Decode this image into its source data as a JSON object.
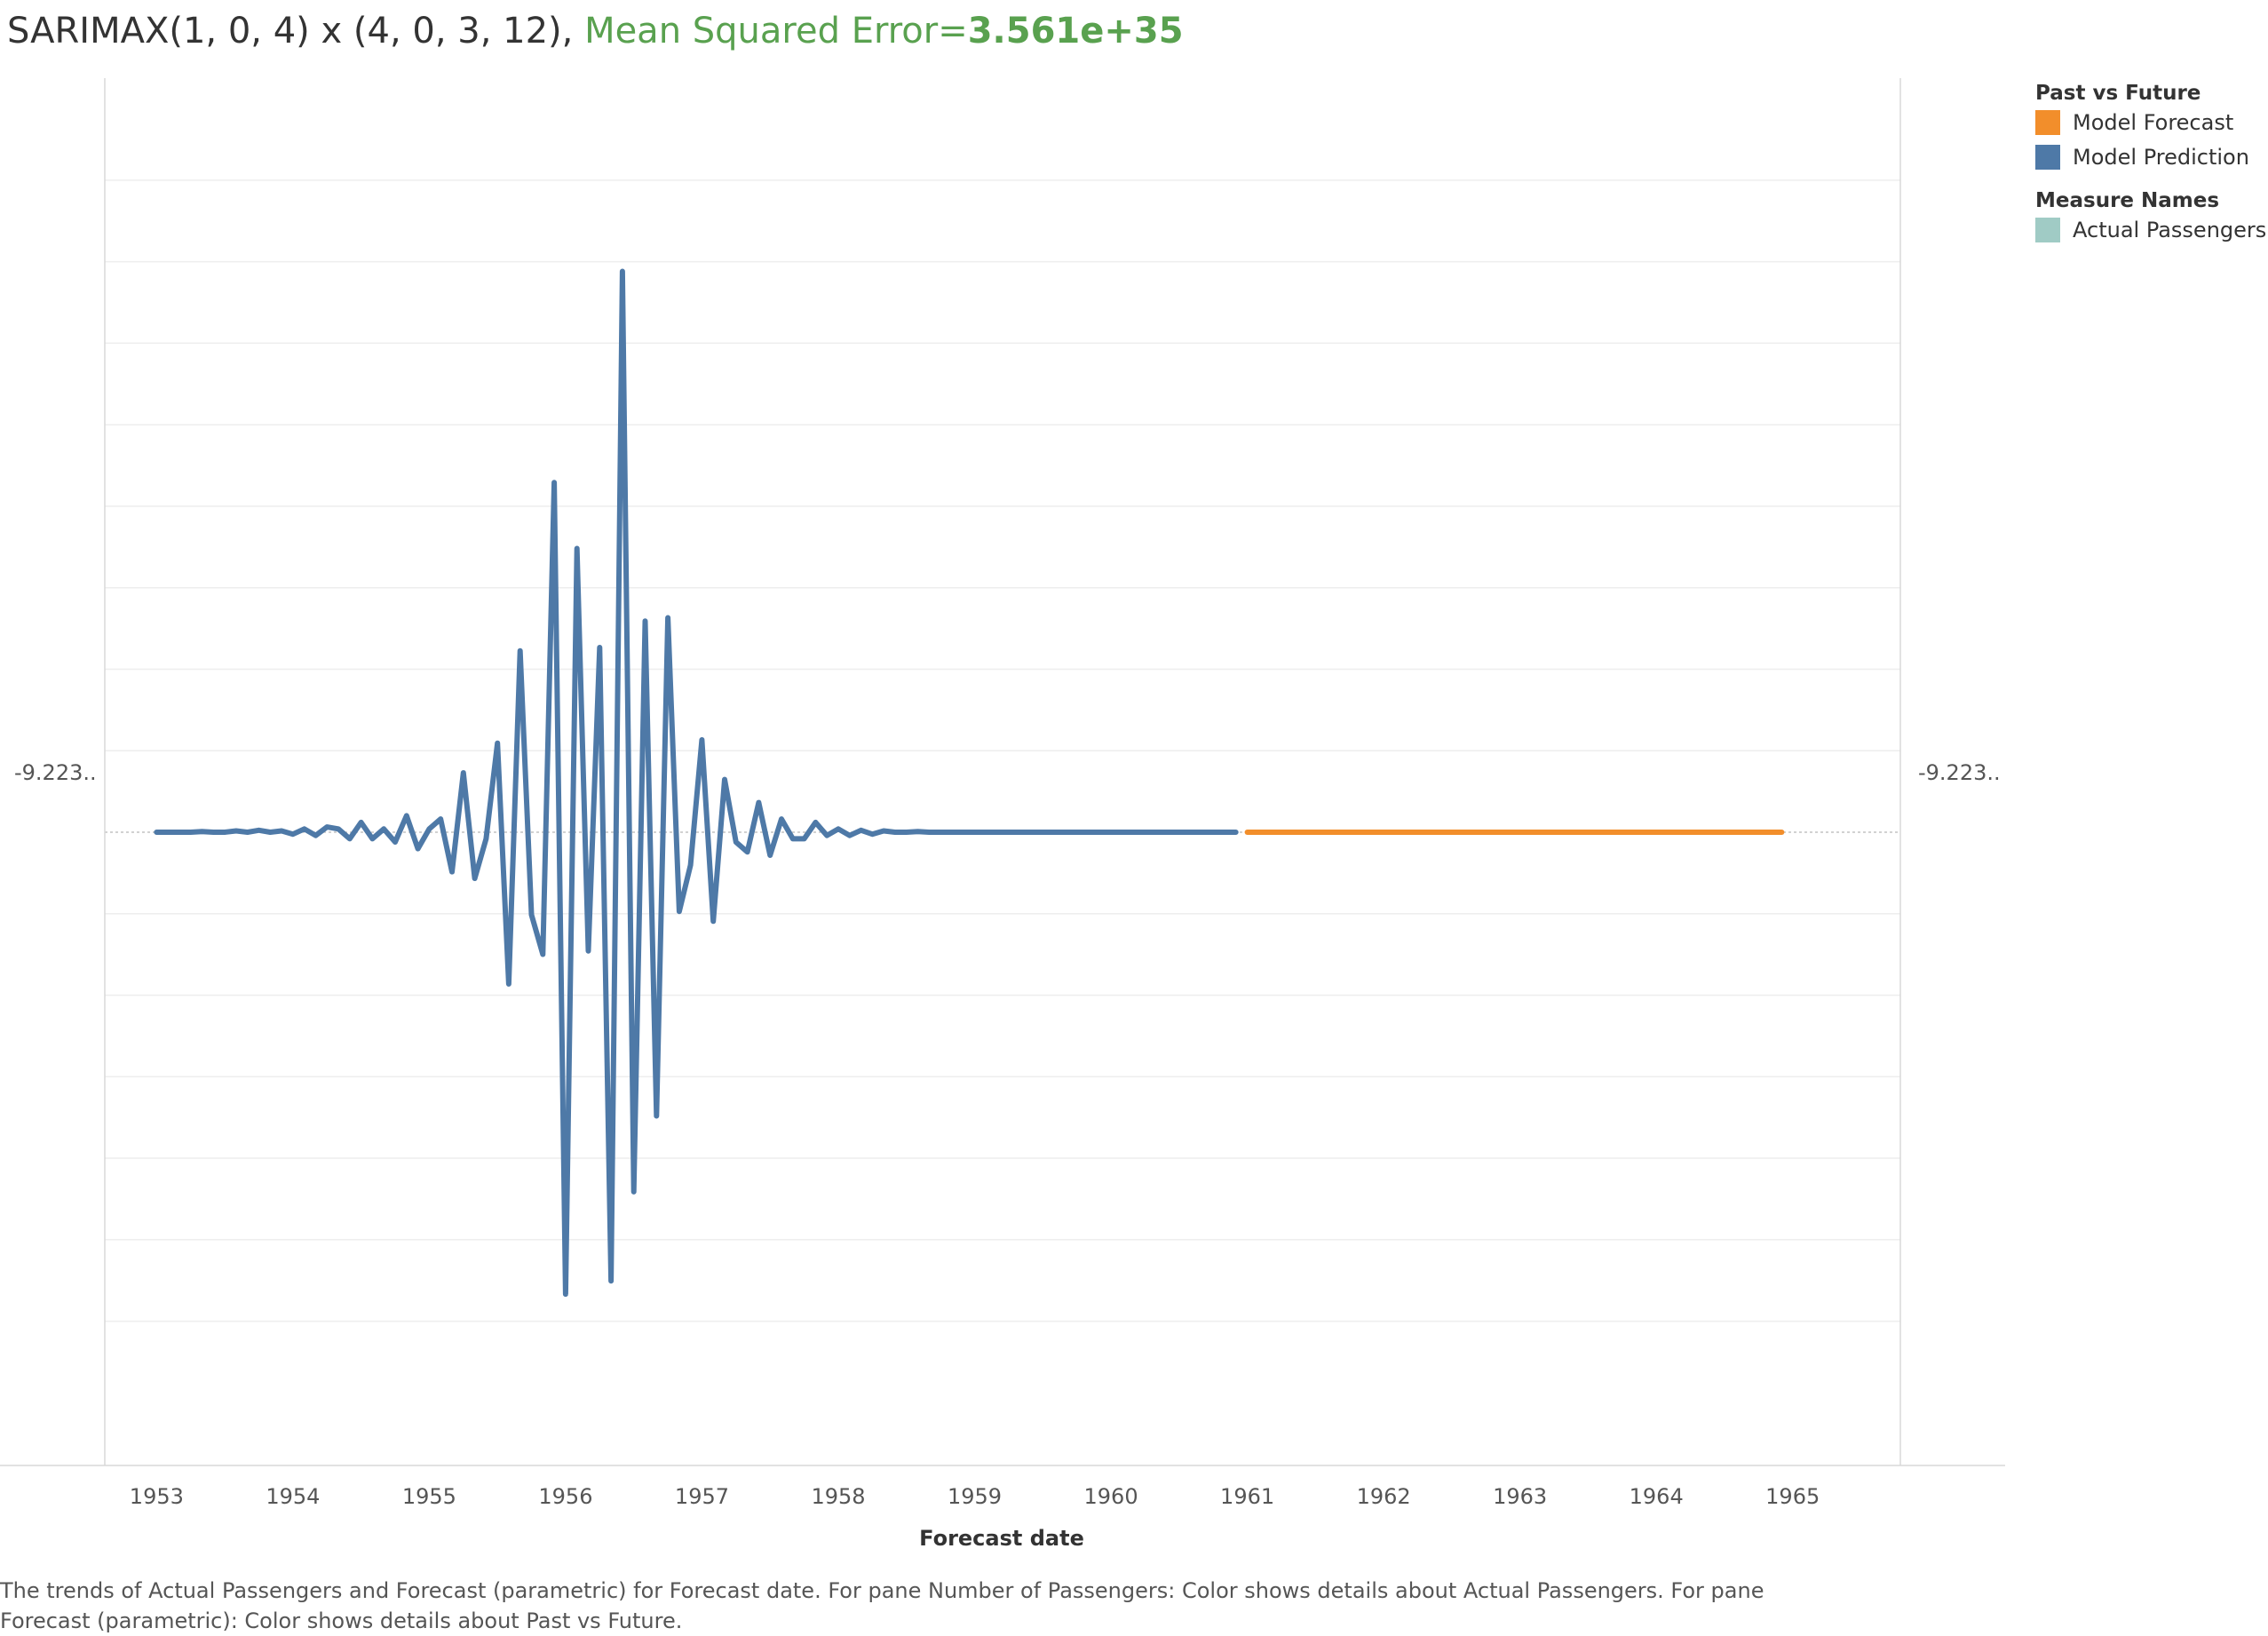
{
  "header": {
    "model": "SARIMAX(1, 0, 4) x (4, 0, 3, 12),",
    "mse_label": "Mean Squared Error=",
    "mse_value": "3.561e+35"
  },
  "legend": {
    "groups": [
      {
        "title": "Past vs Future",
        "items": [
          {
            "label": "Model Forecast",
            "color": "#f28e2b"
          },
          {
            "label": "Model Prediction",
            "color": "#4e79a7"
          }
        ]
      },
      {
        "title": "Measure Names",
        "items": [
          {
            "label": "Actual Passengers",
            "color": "#a0cbc5"
          }
        ]
      }
    ]
  },
  "caption": "The trends of Actual Passengers and Forecast (parametric) for Forecast date.  For pane Number of Passengers:  Color shows details about Actual Passengers.  For pane Forecast (parametric):  Color shows details about Past vs Future.",
  "chart_data": {
    "type": "line",
    "title": "SARIMAX(1, 0, 4) x (4, 0, 3, 12), Mean Squared Error=3.561e+35",
    "xlabel": "Forecast date",
    "ylabel": "",
    "y_left_label": "-9.223..",
    "y_right_label": "-9.223..",
    "xlim": [
      1952.62,
      1965.79
    ],
    "ylim": [
      -7.0,
      8.5
    ],
    "x_ticks": [
      "1953",
      "1954",
      "1955",
      "1956",
      "1957",
      "1958",
      "1959",
      "1960",
      "1961",
      "1962",
      "1963",
      "1964",
      "1965"
    ],
    "series": [
      {
        "name": "Model Prediction",
        "color": "#4e79a7",
        "x_start": 1953.0,
        "x_step": 0.08333,
        "values": [
          0,
          0,
          0,
          0,
          0.01,
          0,
          0,
          0.02,
          0,
          0.03,
          0,
          0.02,
          -0.03,
          0.05,
          -0.05,
          0.08,
          0.05,
          -0.1,
          0.15,
          -0.1,
          0.05,
          -0.15,
          0.25,
          -0.25,
          0.05,
          0.2,
          -0.6,
          0.9,
          -0.7,
          -0.1,
          1.35,
          -2.3,
          2.75,
          -1.25,
          -1.85,
          5.3,
          -7.0,
          4.3,
          -1.8,
          2.8,
          -6.8,
          8.5,
          -5.45,
          3.2,
          -4.3,
          3.25,
          -1.2,
          -0.5,
          1.4,
          -1.35,
          0.8,
          -0.15,
          -0.3,
          0.45,
          -0.35,
          0.2,
          -0.1,
          -0.1,
          0.15,
          -0.05,
          0.05,
          -0.05,
          0.03,
          -0.03,
          0.02,
          0,
          0,
          0.01,
          0,
          0,
          0,
          0,
          0,
          0,
          0,
          0,
          0,
          0,
          0,
          0,
          0,
          0,
          0,
          0,
          0,
          0,
          0,
          0,
          0,
          0,
          0,
          0,
          0,
          0,
          0,
          0
        ]
      },
      {
        "name": "Model Forecast",
        "color": "#f28e2b",
        "x_start": 1961.0,
        "x_end": 1964.92,
        "values": [
          0,
          0
        ]
      }
    ]
  }
}
